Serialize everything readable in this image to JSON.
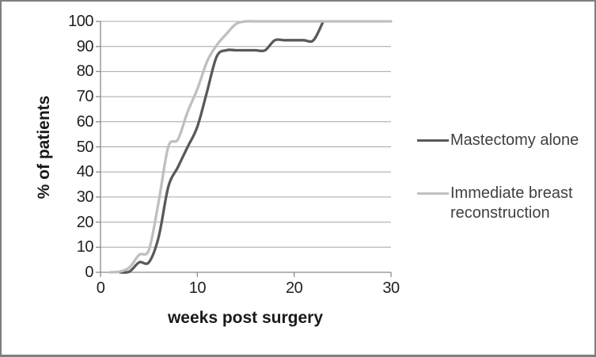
{
  "chart_data": {
    "type": "line",
    "title": "",
    "xlabel": "weeks post surgery",
    "ylabel": "% of patients",
    "xlim": [
      0,
      30
    ],
    "ylim": [
      0,
      100
    ],
    "x_ticks": [
      0,
      10,
      20,
      30
    ],
    "y_ticks": [
      0,
      10,
      20,
      30,
      40,
      50,
      60,
      70,
      80,
      90,
      100
    ],
    "grid": "horizontal only",
    "line_style": "smoothed",
    "legend_position": "right",
    "series": [
      {
        "name": "Mastectomy alone",
        "color": "#595959",
        "points": [
          [
            2,
            0
          ],
          [
            3,
            0.3
          ],
          [
            4,
            4
          ],
          [
            5,
            4
          ],
          [
            6,
            14
          ],
          [
            7,
            34
          ],
          [
            8,
            42
          ],
          [
            9,
            50
          ],
          [
            10,
            58
          ],
          [
            11,
            72
          ],
          [
            12,
            86
          ],
          [
            13,
            88.5
          ],
          [
            14,
            88.5
          ],
          [
            15,
            88.5
          ],
          [
            16,
            88.5
          ],
          [
            17,
            88.5
          ],
          [
            18,
            92.5
          ],
          [
            19,
            92.5
          ],
          [
            20,
            92.5
          ],
          [
            21,
            92.5
          ],
          [
            22,
            92.5
          ],
          [
            23,
            100
          ]
        ]
      },
      {
        "name": "Immediate breast reconstruction",
        "color": "#BFBFBF",
        "points": [
          [
            1,
            0
          ],
          [
            2,
            0.3
          ],
          [
            3,
            2
          ],
          [
            4,
            7
          ],
          [
            5,
            9
          ],
          [
            6,
            28
          ],
          [
            7,
            50
          ],
          [
            8,
            53
          ],
          [
            9,
            64
          ],
          [
            10,
            73
          ],
          [
            11,
            84
          ],
          [
            12,
            90.5
          ],
          [
            13,
            95
          ],
          [
            14,
            99
          ],
          [
            15,
            100
          ],
          [
            16,
            100
          ],
          [
            17,
            100
          ],
          [
            18,
            100
          ],
          [
            19,
            100
          ],
          [
            20,
            100
          ],
          [
            21,
            100
          ],
          [
            22,
            100
          ],
          [
            23,
            100
          ],
          [
            24,
            100
          ],
          [
            25,
            100
          ],
          [
            26,
            100
          ],
          [
            27,
            100
          ],
          [
            28,
            100
          ],
          [
            29,
            100
          ],
          [
            30,
            100
          ]
        ]
      }
    ]
  },
  "axes": {
    "axis_color": "#8C8C8C",
    "gridline_color": "#A6A6A6",
    "tick_label_color": "#1F1F1F"
  },
  "legend": {
    "text_color": "#404040",
    "items": [
      {
        "label": "Mastectomy alone",
        "color": "#595959"
      },
      {
        "label": "Immediate breast reconstruction",
        "color": "#BFBFBF"
      }
    ]
  },
  "frame": {
    "background": "#FFFFFF",
    "border_color": "#7F7F7F"
  }
}
